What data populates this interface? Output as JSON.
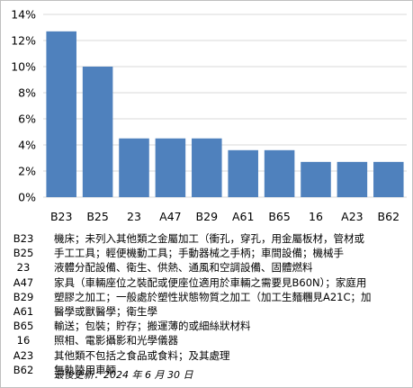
{
  "chart_data": {
    "type": "bar",
    "categories": [
      "B23",
      "B25",
      "23",
      "A47",
      "B29",
      "A61",
      "B65",
      "16",
      "A23",
      "B62"
    ],
    "values": [
      12.7,
      10.0,
      4.5,
      4.5,
      4.5,
      3.6,
      3.6,
      2.7,
      2.7,
      2.7
    ],
    "ylim": [
      0,
      14
    ],
    "yticks": [
      0,
      2,
      4,
      6,
      8,
      10,
      12,
      14
    ],
    "ytick_labels": [
      "0%",
      "2%",
      "4%",
      "6%",
      "8%",
      "10%",
      "12%",
      "14%"
    ],
    "grid": true,
    "bar_color": "#4f81bd"
  },
  "legend": [
    {
      "code": "B23",
      "desc": "機床；未列入其他類之金屬加工（衝孔，穿孔，用金屬板材，管材或"
    },
    {
      "code": "B25",
      "desc": "手工工具；輕便機動工具；手動器械之手柄；車間設備；機械手"
    },
    {
      "code": "23",
      "desc": "液體分配設備、衛生、供熱、通風和空調設備、固體燃料"
    },
    {
      "code": "A47",
      "desc": "家具（車輛座位之裝配或便座位適用於車輛之需要見B60N）；家庭用"
    },
    {
      "code": "B29",
      "desc": "塑膠之加工；一般處於塑性狀態物質之加工（加工生麵糰見A21C；加"
    },
    {
      "code": "A61",
      "desc": "醫學或獸醫學；衛生學"
    },
    {
      "code": "B65",
      "desc": "輸送；包裝；貯存；搬運薄的或細絲狀材料"
    },
    {
      "code": "16",
      "desc": "照相、電影攝影和光學儀器"
    },
    {
      "code": "A23",
      "desc": "其他類不包括之食品或食料；及其處理"
    },
    {
      "code": "B62",
      "desc": "無軌陸用車輛"
    }
  ],
  "updated": "最後更新：2024 年 6 月 30 日"
}
